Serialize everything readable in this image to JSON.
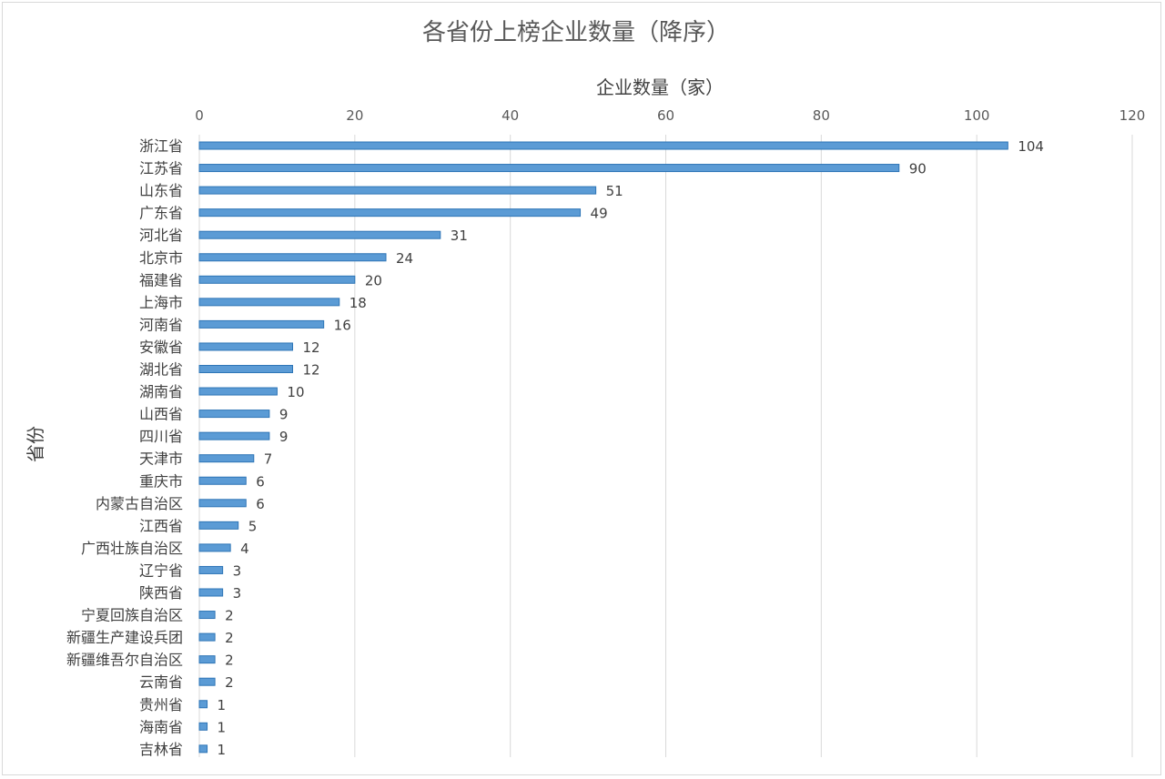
{
  "chart_data": {
    "type": "bar",
    "orientation": "horizontal",
    "title": "各省份上榜企业数量（降序）",
    "xlabel": "企业数量（家）",
    "ylabel": "省份",
    "xlim": [
      0,
      120
    ],
    "xticks": [
      0,
      20,
      40,
      60,
      80,
      100,
      120
    ],
    "x_axis_position": "top",
    "grid": true,
    "data_labels": true,
    "bar_color": "#5b9bd5",
    "categories": [
      "浙江省",
      "江苏省",
      "山东省",
      "广东省",
      "河北省",
      "北京市",
      "福建省",
      "上海市",
      "河南省",
      "安徽省",
      "湖北省",
      "湖南省",
      "山西省",
      "四川省",
      "天津市",
      "重庆市",
      "内蒙古自治区",
      "江西省",
      "广西壮族自治区",
      "辽宁省",
      "陕西省",
      "宁夏回族自治区",
      "新疆生产建设兵团",
      "新疆维吾尔自治区",
      "云南省",
      "贵州省",
      "海南省",
      "吉林省"
    ],
    "values": [
      104,
      90,
      51,
      49,
      31,
      24,
      20,
      18,
      16,
      12,
      12,
      10,
      9,
      9,
      7,
      6,
      6,
      5,
      4,
      3,
      3,
      2,
      2,
      2,
      2,
      1,
      1,
      1
    ]
  }
}
